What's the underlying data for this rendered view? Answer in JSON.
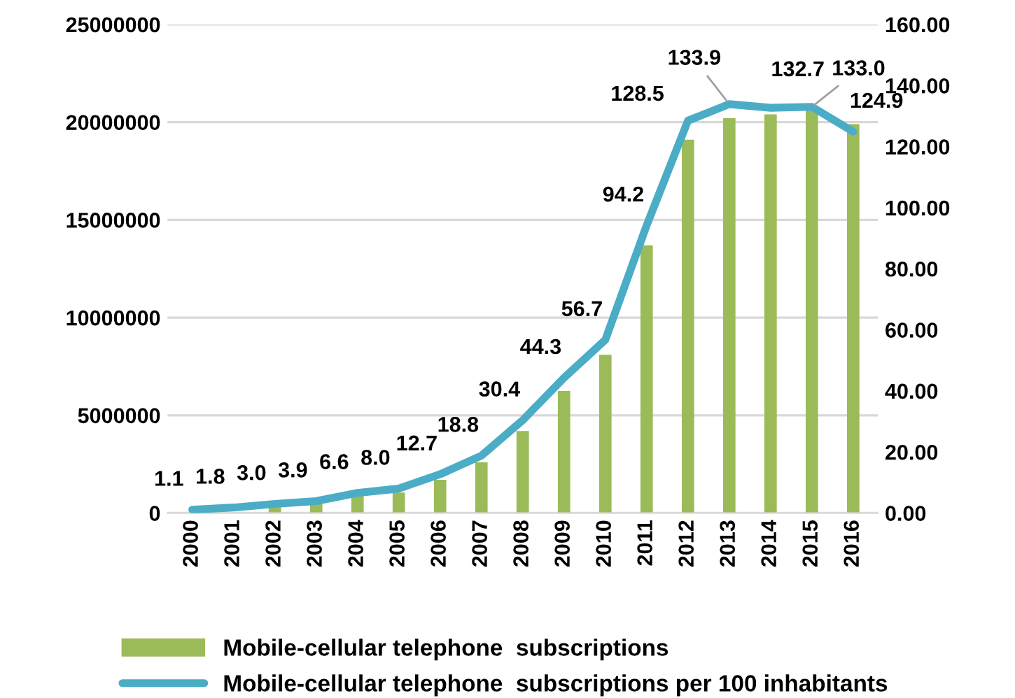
{
  "chart_data": {
    "type": "bar",
    "categories": [
      "2000",
      "2001",
      "2002",
      "2003",
      "2004",
      "2005",
      "2006",
      "2007",
      "2008",
      "2009",
      "2010",
      "2011",
      "2012",
      "2013",
      "2014",
      "2015",
      "2016"
    ],
    "series": [
      {
        "name": "Mobile-cellular telephone  subscriptions",
        "color": "#9bbb59",
        "values": [
          null,
          null,
          300000,
          550000,
          900000,
          1050000,
          1700000,
          2600000,
          4200000,
          6250000,
          8100000,
          13700000,
          19100000,
          20200000,
          20400000,
          20600000,
          19900000
        ]
      },
      {
        "name": "Mobile-cellular telephone  subscriptions per 100 inhabitants",
        "type": "line",
        "axis": "y2",
        "color": "#4bacc6",
        "values": [
          1.1,
          1.8,
          3.0,
          3.9,
          6.6,
          8.0,
          12.7,
          18.8,
          30.4,
          44.3,
          56.7,
          94.2,
          128.5,
          133.9,
          132.7,
          133.0,
          124.9
        ],
        "value_labels": [
          "1.1",
          "1.8",
          "3.0",
          "3.9",
          "6.6",
          "8.0",
          "12.7",
          "18.8",
          "30.4",
          "44.3",
          "56.7",
          "94.2",
          "128.5",
          "133.9",
          "132.7",
          "133.0",
          "124.9"
        ]
      }
    ],
    "ylim": [
      0,
      25000000
    ],
    "yticks": [
      0,
      5000000,
      10000000,
      15000000,
      20000000,
      25000000
    ],
    "y2lim": [
      0,
      160
    ],
    "y2ticks": [
      {
        "value": 0,
        "label": "0.00"
      },
      {
        "value": 20,
        "label": "20.00"
      },
      {
        "value": 40,
        "label": "40.00"
      },
      {
        "value": 60,
        "label": "60.00"
      },
      {
        "value": 80,
        "label": "80.00"
      },
      {
        "value": 100,
        "label": "100.00"
      },
      {
        "value": 120,
        "label": "120.00"
      },
      {
        "value": 140,
        "label": "140.00"
      },
      {
        "value": 160,
        "label": "160.00"
      }
    ],
    "grid": "y",
    "legend": "bottom",
    "marker": "none",
    "line_style": "solid"
  }
}
